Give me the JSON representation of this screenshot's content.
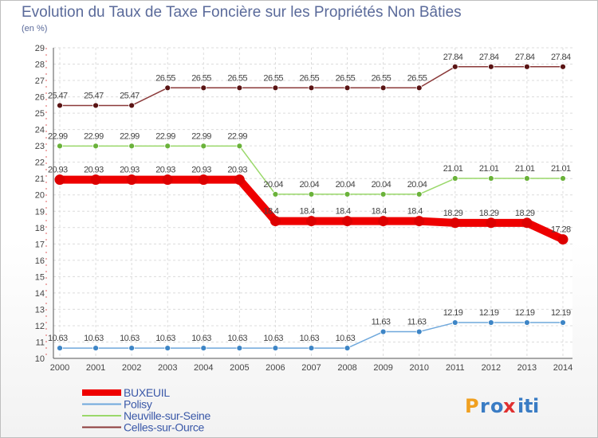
{
  "chart_data": {
    "type": "line",
    "title": "Evolution du Taux de Taxe Foncière sur les Propriétés Non Bâties",
    "subtitle": "(en %)",
    "xlabel": "",
    "ylabel": "",
    "x": [
      "2000",
      "2001",
      "2002",
      "2003",
      "2004",
      "2005",
      "2006",
      "2007",
      "2008",
      "2009",
      "2010",
      "2011",
      "2012",
      "2013",
      "2014"
    ],
    "ylim": [
      10,
      29
    ],
    "yticks": [
      "10",
      "11",
      "12",
      "13",
      "14",
      "15",
      "16",
      "17",
      "18",
      "19",
      "20",
      "21",
      "22",
      "23",
      "24",
      "25",
      "26",
      "27",
      "28",
      "29"
    ],
    "series": [
      {
        "name": "BUXEUIL",
        "color": "#ee0000",
        "markerColor": "#dd0000",
        "values": [
          20.93,
          20.93,
          20.93,
          20.93,
          20.93,
          20.93,
          18.4,
          18.4,
          18.4,
          18.4,
          18.4,
          18.29,
          18.29,
          18.29,
          17.28
        ],
        "labels": [
          "20.93",
          "20.93",
          "20.93",
          "20.93",
          "20.93",
          "20.93",
          "18.4",
          "18.4",
          "18.4",
          "18.4",
          "18.4",
          "18.29",
          "18.29",
          "18.29",
          "17.28"
        ]
      },
      {
        "name": "Polisy",
        "color": "#6fa8dc",
        "markerColor": "#3d85c6",
        "values": [
          10.63,
          10.63,
          10.63,
          10.63,
          10.63,
          10.63,
          10.63,
          10.63,
          10.63,
          11.63,
          11.63,
          12.19,
          12.19,
          12.19,
          12.19
        ],
        "labels": [
          "10.63",
          "10.63",
          "10.63",
          "10.63",
          "10.63",
          "10.63",
          "10.63",
          "10.63",
          "10.63",
          "11.63",
          "11.63",
          "12.19",
          "12.19",
          "12.19",
          "12.19"
        ]
      },
      {
        "name": "Neuville-sur-Seine",
        "color": "#9ad86a",
        "markerColor": "#6ab23a",
        "values": [
          22.99,
          22.99,
          22.99,
          22.99,
          22.99,
          22.99,
          20.04,
          20.04,
          20.04,
          20.04,
          20.04,
          21.01,
          21.01,
          21.01,
          21.01
        ],
        "labels": [
          "22.99",
          "22.99",
          "22.99",
          "22.99",
          "22.99",
          "22.99",
          "20.04",
          "20.04",
          "20.04",
          "20.04",
          "20.04",
          "21.01",
          "21.01",
          "21.01",
          "21.01"
        ]
      },
      {
        "name": "Celles-sur-Ource",
        "color": "#8b3a3a",
        "markerColor": "#5a1414",
        "values": [
          25.47,
          25.47,
          25.47,
          26.55,
          26.55,
          26.55,
          26.55,
          26.55,
          26.55,
          26.55,
          26.55,
          27.84,
          27.84,
          27.84,
          27.84
        ],
        "labels": [
          "25.47",
          "25.47",
          "25.47",
          "26.55",
          "26.55",
          "26.55",
          "26.55",
          "26.55",
          "26.55",
          "26.55",
          "26.55",
          "27.84",
          "27.84",
          "27.84",
          "27.84"
        ]
      }
    ],
    "legend": {
      "placement": "bottom-left"
    }
  },
  "watermark": {
    "text": "Proxiti",
    "letters": [
      "P",
      "r",
      "o",
      "x",
      "i",
      "t",
      "i"
    ],
    "colors": [
      "#f0a020",
      "#3a7cc4",
      "#3a7cc4",
      "#e03030",
      "#3a7cc4",
      "#3a7cc4",
      "#3a7cc4"
    ]
  }
}
